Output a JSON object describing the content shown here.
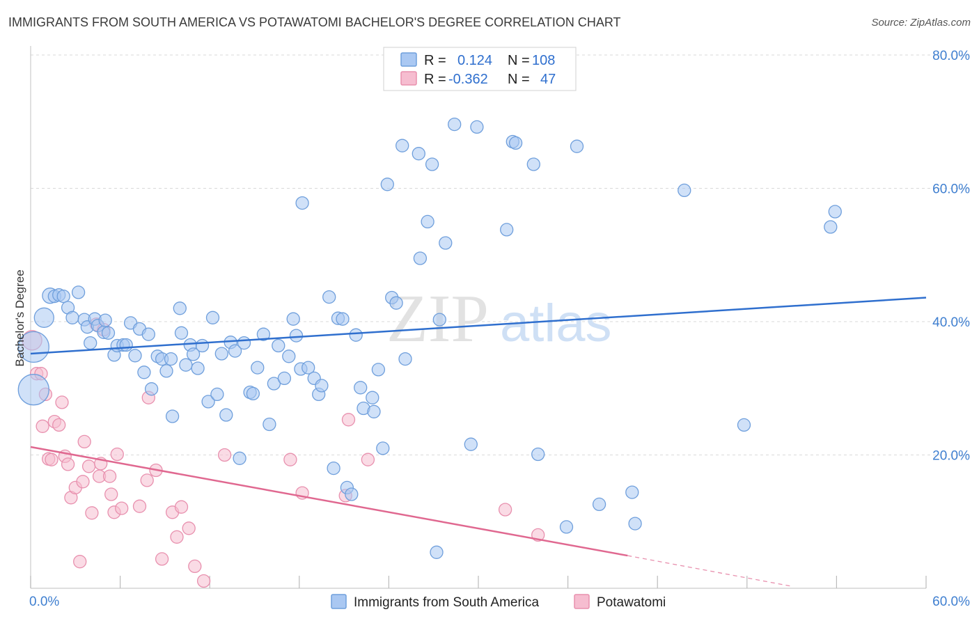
{
  "title": "IMMIGRANTS FROM SOUTH AMERICA VS POTAWATOMI BACHELOR'S DEGREE CORRELATION CHART",
  "source": "Source: ZipAtlas.com",
  "watermark": {
    "part1": "ZIP",
    "part2": "atlas"
  },
  "colors": {
    "blue": "#2f6fce",
    "blue_fill": "#aac8f2",
    "blue_stroke": "#6f9fdc",
    "pink": "#e06890",
    "pink_fill": "#f6bdd0",
    "pink_stroke": "#e890ae",
    "grid": "#d9d9d9",
    "axis_text": "#3f7fd0",
    "legend_text": "#222222"
  },
  "legend_top": {
    "rows": [
      {
        "r_label": "R =",
        "r_value": "0.124",
        "n_label": "N =",
        "n_value": "108"
      },
      {
        "r_label": "R =",
        "r_value": "-0.362",
        "n_label": "N =",
        "n_value": "47"
      }
    ]
  },
  "legend_bottom": [
    {
      "label": "Immigrants from South America"
    },
    {
      "label": "Potawatomi"
    }
  ],
  "chart_data": {
    "type": "scatter",
    "xlabel": "",
    "ylabel": "Bachelor's Degree",
    "xlim": [
      0,
      60
    ],
    "ylim": [
      0,
      80
    ],
    "x_tick_labels": [
      "0.0%",
      "60.0%"
    ],
    "y_ticks": [
      20,
      40,
      60,
      80
    ],
    "y_tick_labels": [
      "20.0%",
      "40.0%",
      "60.0%",
      "80.0%"
    ],
    "grid": true,
    "legend_position": "top-center",
    "series": [
      {
        "name": "Immigrants from South America",
        "color": "#aac8f2",
        "trend": {
          "x": [
            0,
            60
          ],
          "y": [
            35.2,
            43.6
          ]
        },
        "points": [
          [
            0.2,
            36.2,
            22
          ],
          [
            0.2,
            29.8,
            22
          ],
          [
            0.9,
            40.6,
            14
          ],
          [
            1.3,
            43.9,
            11
          ],
          [
            1.6,
            43.8,
            9
          ],
          [
            1.9,
            44.0,
            9
          ],
          [
            2.2,
            43.8,
            9
          ],
          [
            2.5,
            42.1,
            9
          ],
          [
            2.8,
            40.6,
            9
          ],
          [
            3.2,
            44.4,
            9
          ],
          [
            3.6,
            40.3,
            9
          ],
          [
            3.8,
            39.2,
            9
          ],
          [
            4.0,
            36.8,
            9
          ],
          [
            4.3,
            40.4,
            9
          ],
          [
            4.5,
            39.4,
            9
          ],
          [
            4.9,
            38.4,
            9
          ],
          [
            5.0,
            40.2,
            9
          ],
          [
            5.2,
            38.3,
            9
          ],
          [
            5.6,
            35.0,
            9
          ],
          [
            5.8,
            36.4,
            9
          ],
          [
            6.2,
            36.5,
            9
          ],
          [
            6.4,
            36.5,
            9
          ],
          [
            6.7,
            39.8,
            9
          ],
          [
            7.0,
            34.9,
            9
          ],
          [
            7.3,
            38.9,
            9
          ],
          [
            7.6,
            32.4,
            9
          ],
          [
            7.9,
            38.1,
            9
          ],
          [
            8.1,
            29.9,
            9
          ],
          [
            8.5,
            34.8,
            9
          ],
          [
            8.8,
            34.4,
            9
          ],
          [
            9.1,
            32.6,
            9
          ],
          [
            9.4,
            34.4,
            9
          ],
          [
            9.5,
            25.8,
            9
          ],
          [
            10.0,
            42.0,
            9
          ],
          [
            10.1,
            38.3,
            9
          ],
          [
            10.4,
            33.5,
            9
          ],
          [
            10.7,
            36.5,
            9
          ],
          [
            10.9,
            35.1,
            9
          ],
          [
            11.2,
            33.0,
            9
          ],
          [
            11.5,
            36.4,
            9
          ],
          [
            11.9,
            28.0,
            9
          ],
          [
            12.2,
            40.6,
            9
          ],
          [
            12.5,
            29.1,
            9
          ],
          [
            12.8,
            35.2,
            9
          ],
          [
            13.1,
            26.0,
            9
          ],
          [
            13.4,
            36.9,
            9
          ],
          [
            13.7,
            35.6,
            9
          ],
          [
            14.0,
            19.5,
            9
          ],
          [
            14.3,
            36.8,
            9
          ],
          [
            14.7,
            29.4,
            9
          ],
          [
            14.9,
            29.2,
            9
          ],
          [
            15.2,
            33.1,
            9
          ],
          [
            15.6,
            38.1,
            9
          ],
          [
            16.0,
            24.6,
            9
          ],
          [
            16.3,
            30.7,
            9
          ],
          [
            16.6,
            36.4,
            9
          ],
          [
            17.0,
            31.5,
            9
          ],
          [
            17.3,
            34.8,
            9
          ],
          [
            17.6,
            40.4,
            9
          ],
          [
            17.8,
            37.9,
            9
          ],
          [
            18.1,
            32.9,
            9
          ],
          [
            18.2,
            57.8,
            9
          ],
          [
            18.6,
            33.1,
            9
          ],
          [
            19.0,
            31.5,
            9
          ],
          [
            19.3,
            29.1,
            9
          ],
          [
            19.5,
            30.4,
            9
          ],
          [
            20.0,
            43.7,
            9
          ],
          [
            20.3,
            18.0,
            9
          ],
          [
            20.6,
            40.5,
            9
          ],
          [
            20.9,
            40.4,
            9
          ],
          [
            21.2,
            15.1,
            9
          ],
          [
            21.5,
            14.1,
            9
          ],
          [
            21.8,
            38.0,
            9
          ],
          [
            22.1,
            30.1,
            9
          ],
          [
            22.3,
            27.0,
            9
          ],
          [
            22.9,
            28.6,
            9
          ],
          [
            23.0,
            26.5,
            9
          ],
          [
            23.3,
            32.8,
            9
          ],
          [
            23.6,
            21.0,
            9
          ],
          [
            23.9,
            60.6,
            9
          ],
          [
            24.2,
            43.6,
            9
          ],
          [
            24.5,
            42.8,
            9
          ],
          [
            24.9,
            66.4,
            9
          ],
          [
            25.1,
            34.4,
            9
          ],
          [
            26.0,
            65.2,
            9
          ],
          [
            26.1,
            49.5,
            9
          ],
          [
            26.6,
            55.0,
            9
          ],
          [
            26.9,
            63.6,
            9
          ],
          [
            27.2,
            5.4,
            9
          ],
          [
            27.4,
            40.3,
            9
          ],
          [
            27.8,
            51.8,
            9
          ],
          [
            28.4,
            69.6,
            9
          ],
          [
            29.5,
            21.6,
            9
          ],
          [
            29.9,
            69.2,
            9
          ],
          [
            31.9,
            53.8,
            9
          ],
          [
            32.3,
            67.0,
            9
          ],
          [
            32.5,
            66.8,
            9
          ],
          [
            33.7,
            63.6,
            9
          ],
          [
            34.0,
            20.1,
            9
          ],
          [
            35.9,
            9.2,
            9
          ],
          [
            36.6,
            66.3,
            9
          ],
          [
            38.1,
            12.6,
            9
          ],
          [
            40.3,
            14.4,
            9
          ],
          [
            40.5,
            9.7,
            9
          ],
          [
            43.8,
            59.7,
            9
          ],
          [
            47.8,
            24.5,
            9
          ],
          [
            53.6,
            54.2,
            9
          ],
          [
            53.9,
            56.5,
            9
          ]
        ]
      },
      {
        "name": "Potawatomi",
        "color": "#f6bdd0",
        "trend": {
          "x": [
            0,
            40
          ],
          "y": [
            21.2,
            4.9
          ]
        },
        "trend_dashed": {
          "x": [
            40,
            51
          ],
          "y": [
            4.9,
            0.3
          ]
        },
        "points": [
          [
            0.1,
            37.2,
            14
          ],
          [
            0.4,
            32.2,
            9
          ],
          [
            0.7,
            32.2,
            9
          ],
          [
            1.0,
            29.1,
            9
          ],
          [
            0.8,
            24.3,
            9
          ],
          [
            1.2,
            19.4,
            9
          ],
          [
            1.4,
            19.3,
            9
          ],
          [
            1.6,
            25.0,
            9
          ],
          [
            1.9,
            24.5,
            9
          ],
          [
            2.1,
            27.9,
            9
          ],
          [
            2.3,
            19.8,
            9
          ],
          [
            2.5,
            18.6,
            9
          ],
          [
            2.7,
            13.6,
            9
          ],
          [
            3.0,
            15.1,
            9
          ],
          [
            3.3,
            4.0,
            9
          ],
          [
            3.5,
            16.0,
            9
          ],
          [
            3.6,
            22.0,
            9
          ],
          [
            3.9,
            18.3,
            9
          ],
          [
            4.1,
            11.3,
            9
          ],
          [
            4.4,
            39.6,
            9
          ],
          [
            4.6,
            16.8,
            9
          ],
          [
            4.7,
            18.7,
            9
          ],
          [
            4.9,
            38.8,
            9
          ],
          [
            5.3,
            16.8,
            9
          ],
          [
            5.4,
            14.1,
            9
          ],
          [
            5.6,
            11.4,
            9
          ],
          [
            5.8,
            20.1,
            9
          ],
          [
            6.1,
            12.0,
            9
          ],
          [
            7.3,
            12.3,
            9
          ],
          [
            7.8,
            16.2,
            9
          ],
          [
            7.9,
            28.6,
            9
          ],
          [
            8.4,
            17.7,
            9
          ],
          [
            8.8,
            4.4,
            9
          ],
          [
            9.5,
            11.4,
            9
          ],
          [
            9.8,
            7.7,
            9
          ],
          [
            10.1,
            12.2,
            9
          ],
          [
            10.6,
            9.0,
            9
          ],
          [
            11.0,
            3.3,
            9
          ],
          [
            11.6,
            1.1,
            9
          ],
          [
            13.0,
            20.0,
            9
          ],
          [
            17.4,
            19.3,
            9
          ],
          [
            18.2,
            14.3,
            9
          ],
          [
            21.1,
            13.9,
            9
          ],
          [
            21.3,
            25.3,
            9
          ],
          [
            22.6,
            19.3,
            9
          ],
          [
            31.8,
            11.8,
            9
          ],
          [
            34.0,
            8.0,
            9
          ]
        ]
      }
    ]
  }
}
